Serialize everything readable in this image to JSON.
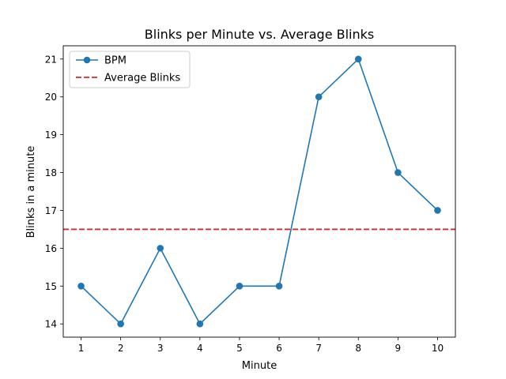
{
  "chart_data": {
    "type": "line",
    "title": "Blinks per Minute vs. Average Blinks",
    "xlabel": "Minute",
    "ylabel": "Blinks in a minute",
    "x": [
      1,
      2,
      3,
      4,
      5,
      6,
      7,
      8,
      9,
      10
    ],
    "xlim": [
      0.55,
      10.45
    ],
    "ylim": [
      13.65,
      21.35
    ],
    "xticks": [
      1,
      2,
      3,
      4,
      5,
      6,
      7,
      8,
      9,
      10
    ],
    "yticks": [
      14,
      15,
      16,
      17,
      18,
      19,
      20,
      21
    ],
    "grid": false,
    "legend_position": "upper left",
    "series": [
      {
        "name": "BPM",
        "values": [
          15,
          14,
          16,
          14,
          15,
          15,
          20,
          21,
          18,
          17
        ],
        "color": "#1f77b4",
        "style": "solid",
        "marker": "circle"
      }
    ],
    "reference_lines": [
      {
        "name": "Average Blinks",
        "value": 16.5,
        "orientation": "horizontal",
        "color": "#d62728",
        "style": "dashed"
      }
    ]
  }
}
